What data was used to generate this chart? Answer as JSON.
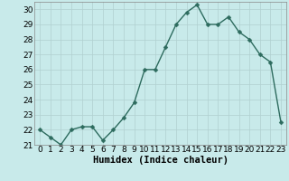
{
  "x": [
    0,
    1,
    2,
    3,
    4,
    5,
    6,
    7,
    8,
    9,
    10,
    11,
    12,
    13,
    14,
    15,
    16,
    17,
    18,
    19,
    20,
    21,
    22,
    23
  ],
  "y": [
    22,
    21.5,
    21,
    22,
    22.2,
    22.2,
    21.3,
    22,
    22.8,
    23.8,
    26,
    26,
    27.5,
    29,
    29.8,
    30.3,
    29,
    29,
    29.5,
    28.5,
    28,
    27,
    26.5,
    22.5
  ],
  "line_color": "#2d6b5e",
  "marker_color": "#2d6b5e",
  "bg_color": "#c8eaea",
  "grid_color": "#b0d0d0",
  "xlabel": "Humidex (Indice chaleur)",
  "xlim": [
    -0.5,
    23.5
  ],
  "ylim": [
    21,
    30.5
  ],
  "yticks": [
    21,
    22,
    23,
    24,
    25,
    26,
    27,
    28,
    29,
    30
  ],
  "xticks": [
    0,
    1,
    2,
    3,
    4,
    5,
    6,
    7,
    8,
    9,
    10,
    11,
    12,
    13,
    14,
    15,
    16,
    17,
    18,
    19,
    20,
    21,
    22,
    23
  ],
  "xlabel_fontsize": 7.5,
  "tick_fontsize": 6.5,
  "line_width": 1.0,
  "marker_size": 2.5
}
